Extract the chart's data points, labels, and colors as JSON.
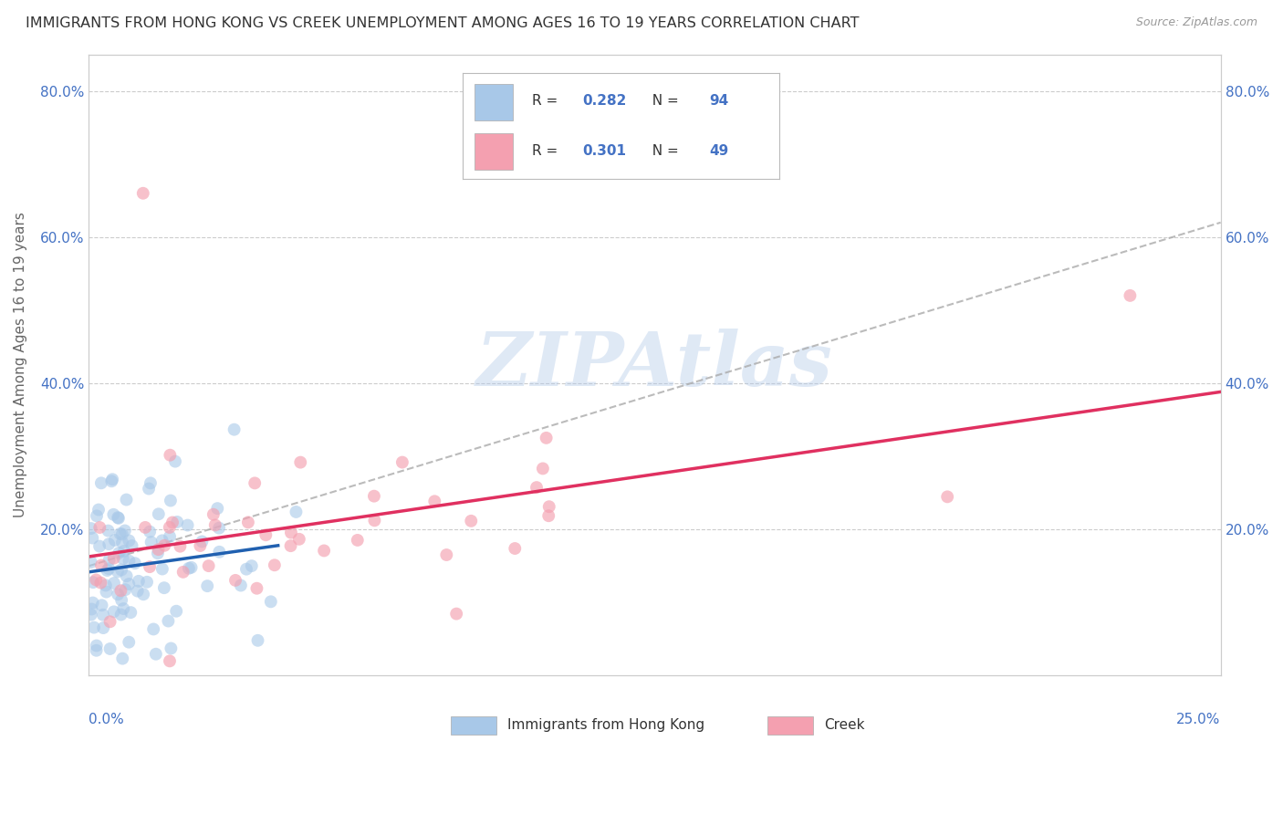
{
  "title": "IMMIGRANTS FROM HONG KONG VS CREEK UNEMPLOYMENT AMONG AGES 16 TO 19 YEARS CORRELATION CHART",
  "source": "Source: ZipAtlas.com",
  "ylabel": "Unemployment Among Ages 16 to 19 years",
  "xlim": [
    0.0,
    0.25
  ],
  "ylim": [
    0.0,
    0.85
  ],
  "series1_label": "Immigrants from Hong Kong",
  "series1_R": "0.282",
  "series1_N": "94",
  "series1_color": "#a8c8e8",
  "series1_line_color": "#2060b0",
  "series2_label": "Creek",
  "series2_R": "0.301",
  "series2_N": "49",
  "series2_color": "#f4a0b0",
  "series2_line_color": "#e03060",
  "watermark": "ZIPAtlas",
  "legend_text_color": "#4472c4",
  "ytick_positions": [
    0.2,
    0.4,
    0.6,
    0.8
  ],
  "ytick_labels": [
    "20.0%",
    "40.0%",
    "60.0%",
    "80.0%"
  ],
  "grid_color": "#cccccc"
}
